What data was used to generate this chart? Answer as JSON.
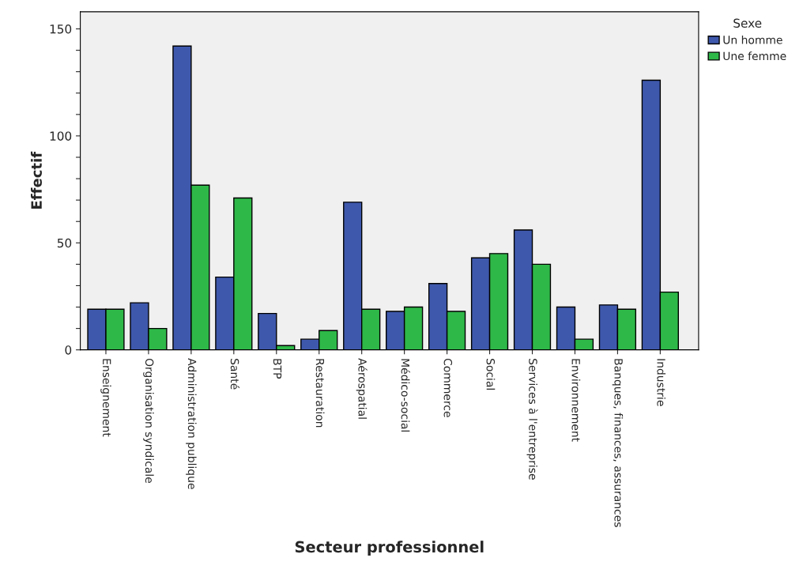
{
  "chart_data": {
    "type": "bar",
    "xlabel": "Secteur professionnel",
    "ylabel": "Effectif",
    "legend_title": "Sexe",
    "legend": "top right",
    "categories": [
      "Enseignement",
      "Organisation syndicale",
      "Administration publique",
      "Santé",
      "BTP",
      "Restauration",
      "Aérospatial",
      "Médico-social",
      "Commerce",
      "Social",
      "Services à l'entreprise",
      "Environnement",
      "Banques, finances, assurances",
      "Industrie"
    ],
    "series": [
      {
        "name": "Un homme",
        "color": "#3e58ac",
        "values": [
          19,
          22,
          142,
          34,
          17,
          5,
          69,
          18,
          31,
          43,
          56,
          20,
          21,
          126
        ]
      },
      {
        "name": "Une femme",
        "color": "#2eb848",
        "values": [
          19,
          10,
          77,
          71,
          2,
          9,
          19,
          20,
          18,
          45,
          40,
          5,
          19,
          27
        ]
      }
    ],
    "ylim": [
      0,
      158
    ],
    "yticks": [
      0,
      {
        "value": 10,
        "label": null
      },
      {
        "value": 20,
        "label": null
      },
      {
        "value": 30,
        "label": null
      },
      {
        "value": 40,
        "label": null
      },
      50,
      {
        "value": 60,
        "label": null
      },
      {
        "value": 70,
        "label": null
      },
      {
        "value": 80,
        "label": null
      },
      {
        "value": 90,
        "label": null
      },
      100,
      {
        "value": 110,
        "label": null
      },
      {
        "value": 120,
        "label": null
      },
      {
        "value": 130,
        "label": null
      },
      {
        "value": 140,
        "label": null
      },
      150
    ],
    "grid": false
  }
}
